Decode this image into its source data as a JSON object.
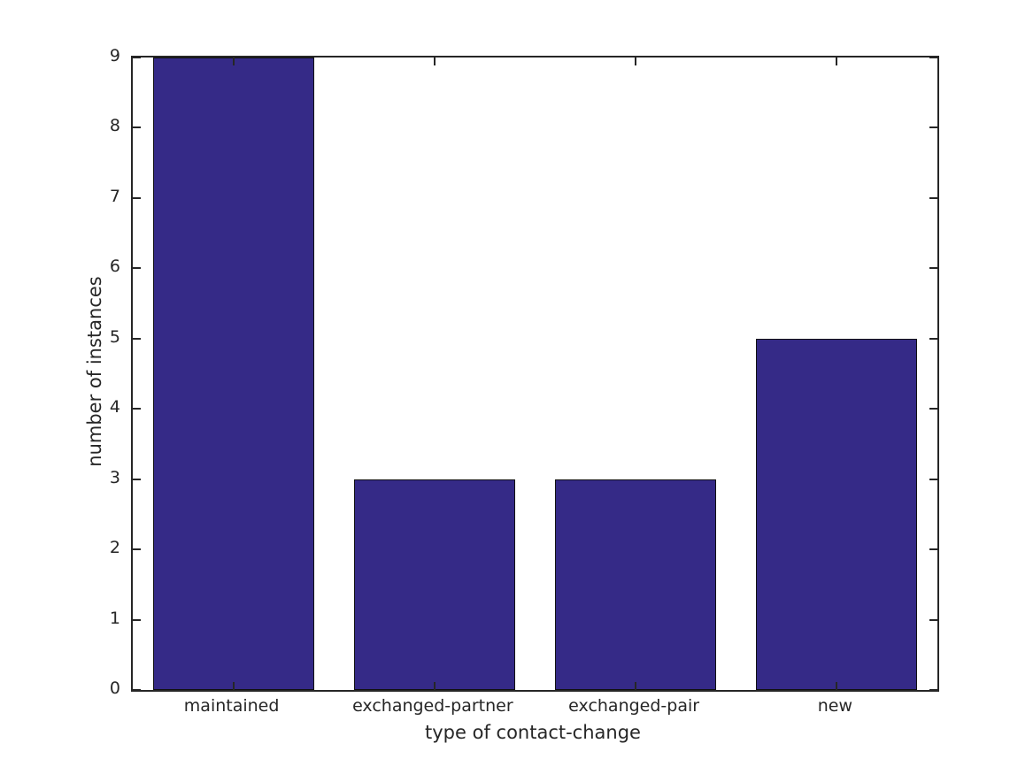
{
  "chart_data": {
    "type": "bar",
    "categories": [
      "maintained",
      "exchanged-partner",
      "exchanged-pair",
      "new"
    ],
    "values": [
      9,
      3,
      3,
      5
    ],
    "title": "",
    "xlabel": "type of contact-change",
    "ylabel": "number of instances",
    "ylim": [
      0,
      9
    ],
    "yticks": [
      0,
      1,
      2,
      3,
      4,
      5,
      6,
      7,
      8,
      9
    ],
    "bar_width_fraction": 0.8,
    "grid": false,
    "legend": null,
    "colors": {
      "bar_fill": "#352a87",
      "bar_edge": "#111111",
      "axis": "#262626",
      "text": "#262626",
      "background": "#ffffff"
    }
  }
}
